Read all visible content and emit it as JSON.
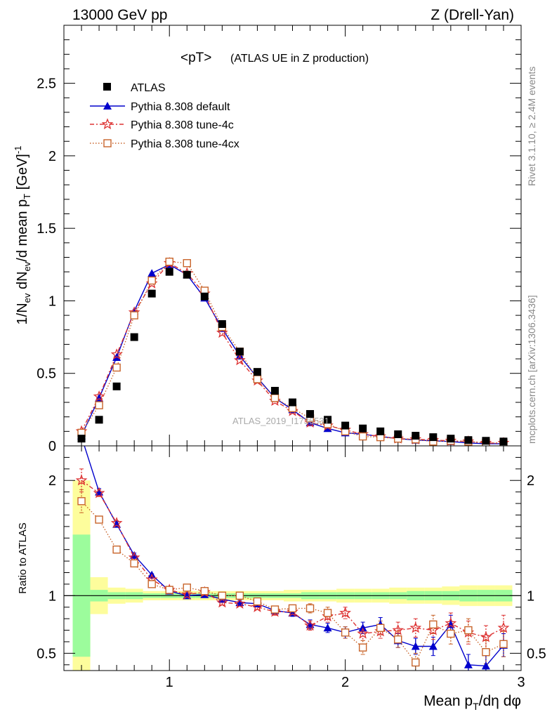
{
  "header": {
    "left": "13000 GeV pp",
    "right": "Z (Drell-Yan)"
  },
  "side_labels": {
    "rivet": "Rivet 3.1.10, ≥ 2.4M events",
    "mcplots": "mcplots.cern.ch [arXiv:1306.3436]"
  },
  "watermark": "ATLAS_2019_I1736531",
  "colors": {
    "data": "#000000",
    "default": "#0000cc",
    "tune4c": "#dd3333",
    "tune4cx": "#c8642a",
    "band_inner": "#9cfc9c",
    "band_outer": "#fdfd9c"
  },
  "chart_data": [
    {
      "type": "line",
      "title": "<pT>",
      "subtitle": "(ATLAS UE in Z production)",
      "ylabel": "1/N_ev dN_ev/d mean p_T [GeV]^-1",
      "xlim": [
        0.4,
        3.0
      ],
      "ylim": [
        0,
        2.9
      ],
      "yticks": [
        "0.5",
        "1",
        "1.5",
        "2",
        "2.5"
      ],
      "x": [
        0.5,
        0.6,
        0.7,
        0.8,
        0.9,
        1.0,
        1.1,
        1.2,
        1.3,
        1.4,
        1.5,
        1.6,
        1.7,
        1.8,
        1.9,
        2.0,
        2.1,
        2.2,
        2.3,
        2.4,
        2.5,
        2.6,
        2.7,
        2.8,
        2.9
      ],
      "series": [
        {
          "name": "ATLAS",
          "marker": "square",
          "values": [
            0.05,
            0.18,
            0.41,
            0.75,
            1.05,
            1.2,
            1.18,
            1.03,
            0.84,
            0.65,
            0.51,
            0.38,
            0.3,
            0.22,
            0.18,
            0.14,
            0.12,
            0.1,
            0.08,
            0.07,
            0.06,
            0.05,
            0.04,
            0.035,
            0.03
          ]
        },
        {
          "name": "Pythia 8.308 default",
          "marker": "triangle",
          "values": [
            0.07,
            0.33,
            0.61,
            0.93,
            1.19,
            1.25,
            1.18,
            1.02,
            0.81,
            0.62,
            0.47,
            0.33,
            0.25,
            0.16,
            0.12,
            0.09,
            0.08,
            0.065,
            0.05,
            0.04,
            0.035,
            0.03,
            0.02,
            0.015,
            0.015
          ]
        },
        {
          "name": "Pythia 8.308 tune-4c",
          "marker": "star",
          "values": [
            0.1,
            0.34,
            0.63,
            0.92,
            1.12,
            1.26,
            1.19,
            1.05,
            0.78,
            0.59,
            0.45,
            0.31,
            0.24,
            0.16,
            0.14,
            0.11,
            0.08,
            0.065,
            0.05,
            0.045,
            0.04,
            0.035,
            0.03,
            0.02,
            0.02
          ]
        },
        {
          "name": "Pythia 8.308 tune-4cx",
          "marker": "open-square",
          "values": [
            0.09,
            0.28,
            0.54,
            0.9,
            1.14,
            1.27,
            1.26,
            1.07,
            0.82,
            0.65,
            0.46,
            0.33,
            0.26,
            0.19,
            0.15,
            0.1,
            0.065,
            0.06,
            0.05,
            0.045,
            0.03,
            0.035,
            0.03,
            0.02,
            0.018
          ]
        }
      ]
    },
    {
      "type": "line",
      "ylabel": "Ratio to ATLAS",
      "xlabel": "Mean p_T/dη dφ",
      "xlim": [
        0.4,
        3.0
      ],
      "ylim": [
        0.35,
        2.3
      ],
      "xticks": [
        "1",
        "2",
        "3"
      ],
      "yticks": [
        "0.5",
        "1",
        "2"
      ],
      "x": [
        0.5,
        0.6,
        0.7,
        0.8,
        0.9,
        1.0,
        1.1,
        1.2,
        1.3,
        1.4,
        1.5,
        1.6,
        1.7,
        1.8,
        1.9,
        2.0,
        2.1,
        2.2,
        2.3,
        2.4,
        2.5,
        2.6,
        2.7,
        2.8,
        2.9
      ],
      "bands": {
        "edges": [
          0.45,
          0.55,
          0.65,
          0.75,
          0.85,
          0.95,
          1.05,
          1.15,
          1.25,
          1.35,
          1.45,
          1.55,
          1.65,
          1.75,
          1.85,
          1.95,
          2.05,
          2.15,
          2.25,
          2.35,
          2.45,
          2.55,
          2.65,
          2.75,
          2.85,
          2.95
        ],
        "inner": [
          0.53,
          0.05,
          0.03,
          0.03,
          0.02,
          0.02,
          0.02,
          0.02,
          0.02,
          0.02,
          0.02,
          0.02,
          0.02,
          0.03,
          0.03,
          0.03,
          0.03,
          0.03,
          0.03,
          0.04,
          0.04,
          0.04,
          0.05,
          0.05,
          0.05
        ],
        "outer": [
          1.0,
          0.16,
          0.07,
          0.06,
          0.04,
          0.04,
          0.04,
          0.04,
          0.04,
          0.04,
          0.04,
          0.04,
          0.05,
          0.05,
          0.05,
          0.06,
          0.06,
          0.06,
          0.07,
          0.07,
          0.07,
          0.08,
          0.09,
          0.09,
          0.09
        ]
      },
      "series": [
        {
          "name": "Pythia 8.308 default",
          "values": [
            2.38,
            1.9,
            1.62,
            1.35,
            1.18,
            1.04,
            1.0,
            1.01,
            0.97,
            0.94,
            0.93,
            0.87,
            0.85,
            0.75,
            0.72,
            0.68,
            0.72,
            0.75,
            0.61,
            0.56,
            0.56,
            0.75,
            0.4,
            0.39,
            0.57
          ],
          "errors": [
            0.08,
            0.03,
            0.02,
            0.02,
            0.01,
            0.01,
            0.01,
            0.01,
            0.02,
            0.02,
            0.02,
            0.03,
            0.03,
            0.04,
            0.04,
            0.05,
            0.05,
            0.06,
            0.06,
            0.07,
            0.08,
            0.08,
            0.09,
            0.1,
            0.1
          ]
        },
        {
          "name": "Pythia 8.308 tune-4c",
          "values": [
            2.0,
            1.89,
            1.63,
            1.33,
            1.14,
            1.05,
            1.01,
            1.03,
            0.94,
            0.93,
            0.9,
            0.86,
            0.86,
            0.74,
            0.82,
            0.85,
            0.67,
            0.69,
            0.7,
            0.72,
            0.7,
            0.76,
            0.68,
            0.64,
            0.72
          ],
          "errors": [
            0.1,
            0.03,
            0.02,
            0.02,
            0.01,
            0.01,
            0.01,
            0.01,
            0.02,
            0.02,
            0.02,
            0.03,
            0.03,
            0.04,
            0.05,
            0.05,
            0.06,
            0.06,
            0.07,
            0.08,
            0.08,
            0.09,
            0.1,
            0.1,
            0.11
          ]
        },
        {
          "name": "Pythia 8.308 tune-4cx",
          "values": [
            1.82,
            1.66,
            1.4,
            1.28,
            1.1,
            1.05,
            1.07,
            1.04,
            1.0,
            1.0,
            0.95,
            0.88,
            0.89,
            0.89,
            0.85,
            0.68,
            0.55,
            0.72,
            0.62,
            0.42,
            0.75,
            0.67,
            0.7,
            0.51,
            0.58
          ],
          "errors": [
            0.1,
            0.03,
            0.02,
            0.02,
            0.01,
            0.01,
            0.01,
            0.01,
            0.02,
            0.02,
            0.02,
            0.03,
            0.03,
            0.04,
            0.05,
            0.05,
            0.06,
            0.06,
            0.07,
            0.08,
            0.08,
            0.09,
            0.1,
            0.1,
            0.11
          ]
        }
      ]
    }
  ]
}
